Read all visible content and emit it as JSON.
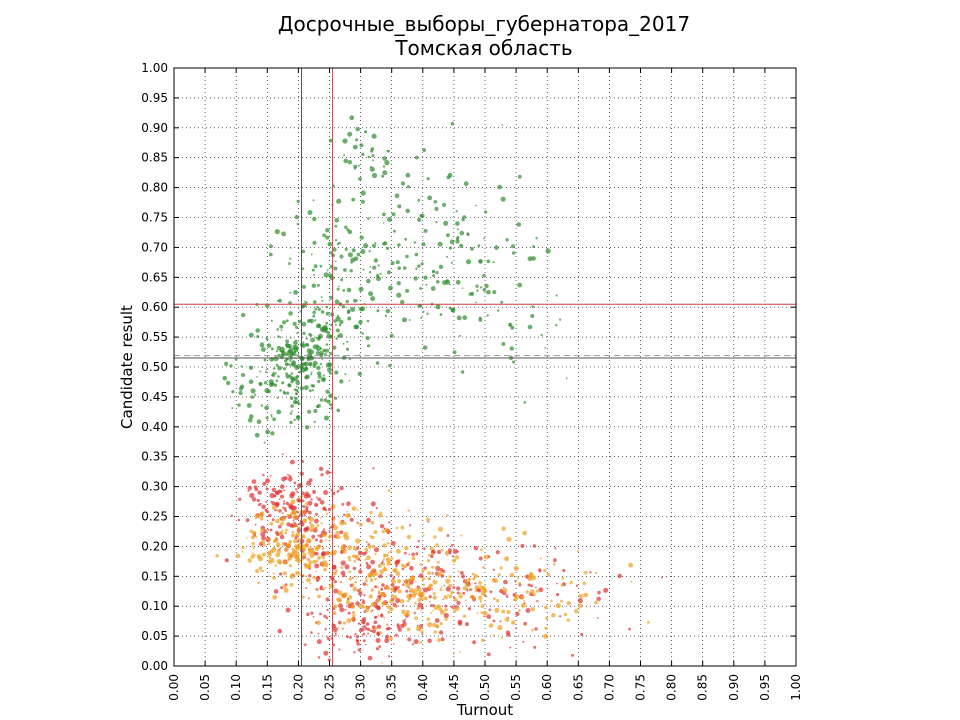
{
  "chart_data": {
    "type": "scatter",
    "title": "Досрочные_выборы_губернатора_2017",
    "subtitle": "Томская область",
    "xlabel": "Turnout",
    "ylabel": "Candidate result",
    "xlim": [
      0,
      1
    ],
    "ylim": [
      0,
      1
    ],
    "x_ticks": [
      "0.00",
      "0.05",
      "0.10",
      "0.15",
      "0.20",
      "0.25",
      "0.30",
      "0.35",
      "0.40",
      "0.45",
      "0.50",
      "0.55",
      "0.60",
      "0.65",
      "0.70",
      "0.75",
      "0.80",
      "0.85",
      "0.90",
      "0.95",
      "1.00"
    ],
    "y_ticks": [
      "0.00",
      "0.05",
      "0.10",
      "0.15",
      "0.20",
      "0.25",
      "0.30",
      "0.35",
      "0.40",
      "0.45",
      "0.50",
      "0.55",
      "0.60",
      "0.65",
      "0.70",
      "0.75",
      "0.80",
      "0.85",
      "0.90",
      "0.95",
      "1.00"
    ],
    "grid": true,
    "reference_lines": [
      {
        "orientation": "vertical",
        "value": 0.205,
        "color": "#555555"
      },
      {
        "orientation": "vertical",
        "value": 0.255,
        "color": "#d04040"
      },
      {
        "orientation": "horizontal",
        "value": 0.605,
        "color": "#d04040"
      },
      {
        "orientation": "horizontal",
        "value": 0.515,
        "color": "#555555"
      },
      {
        "orientation": "horizontal",
        "value": 0.519,
        "color": "#999999",
        "style": "dashed"
      }
    ],
    "series": [
      {
        "color": "#2e8b2e",
        "clusters": [
          {
            "x": 0.2,
            "y": 0.5,
            "sx": 0.035,
            "sy": 0.04,
            "n": 220
          },
          {
            "x": 0.25,
            "y": 0.6,
            "sx": 0.045,
            "sy": 0.07,
            "n": 160
          },
          {
            "x": 0.38,
            "y": 0.7,
            "sx": 0.08,
            "sy": 0.08,
            "n": 150
          },
          {
            "x": 0.48,
            "y": 0.62,
            "sx": 0.07,
            "sy": 0.08,
            "n": 60
          },
          {
            "x": 0.3,
            "y": 0.86,
            "sx": 0.03,
            "sy": 0.03,
            "n": 30
          },
          {
            "x": 0.13,
            "y": 0.45,
            "sx": 0.025,
            "sy": 0.04,
            "n": 30
          }
        ]
      },
      {
        "color": "#e03030",
        "clusters": [
          {
            "x": 0.19,
            "y": 0.26,
            "sx": 0.04,
            "sy": 0.04,
            "n": 200
          },
          {
            "x": 0.3,
            "y": 0.14,
            "sx": 0.06,
            "sy": 0.06,
            "n": 200
          },
          {
            "x": 0.45,
            "y": 0.12,
            "sx": 0.08,
            "sy": 0.05,
            "n": 120
          },
          {
            "x": 0.3,
            "y": 0.05,
            "sx": 0.03,
            "sy": 0.015,
            "n": 40
          },
          {
            "x": 0.6,
            "y": 0.1,
            "sx": 0.07,
            "sy": 0.04,
            "n": 40
          }
        ]
      },
      {
        "color": "#f0a020",
        "clusters": [
          {
            "x": 0.2,
            "y": 0.2,
            "sx": 0.04,
            "sy": 0.035,
            "n": 220
          },
          {
            "x": 0.32,
            "y": 0.15,
            "sx": 0.06,
            "sy": 0.05,
            "n": 180
          },
          {
            "x": 0.45,
            "y": 0.12,
            "sx": 0.07,
            "sy": 0.04,
            "n": 150
          },
          {
            "x": 0.58,
            "y": 0.12,
            "sx": 0.08,
            "sy": 0.04,
            "n": 60
          }
        ]
      }
    ]
  }
}
